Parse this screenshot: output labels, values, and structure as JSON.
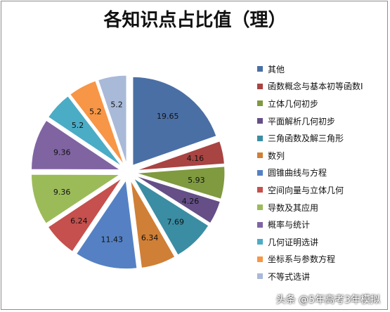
{
  "title": "各知识点占比值（理）",
  "watermark": "头条 @5年高考3年模拟",
  "chart_data": {
    "type": "pie",
    "title": "各知识点占比值（理）",
    "legend_position": "right",
    "exploded": true,
    "slices": [
      {
        "label": "其他",
        "value": 19.65,
        "color": "#4a6fa5"
      },
      {
        "label": "函数概念与基本初等函数Ⅰ",
        "value": 4.16,
        "color": "#a84442"
      },
      {
        "label": "立体几何初步",
        "value": 5.93,
        "color": "#7f9a3f"
      },
      {
        "label": "平面解析几何初步",
        "value": 4.26,
        "color": "#654f86"
      },
      {
        "label": "三角函数及解三角形",
        "value": 7.69,
        "color": "#3b8da3"
      },
      {
        "label": "数列",
        "value": 6.34,
        "color": "#d07f36"
      },
      {
        "label": "圆锥曲线与方程",
        "value": 11.43,
        "color": "#5581c4"
      },
      {
        "label": "空间向量与立体几何",
        "value": 6.24,
        "color": "#c5504d"
      },
      {
        "label": "导数及其应用",
        "value": 9.36,
        "color": "#9bbb59"
      },
      {
        "label": "概率与统计",
        "value": 9.36,
        "color": "#8064a2"
      },
      {
        "label": "几何证明选讲",
        "value": 5.2,
        "color": "#4bacc6"
      },
      {
        "label": "坐标系与参数方程",
        "value": 5.2,
        "color": "#f79646"
      },
      {
        "label": "不等式选讲",
        "value": 5.2,
        "color": "#a9b9d8"
      }
    ]
  }
}
